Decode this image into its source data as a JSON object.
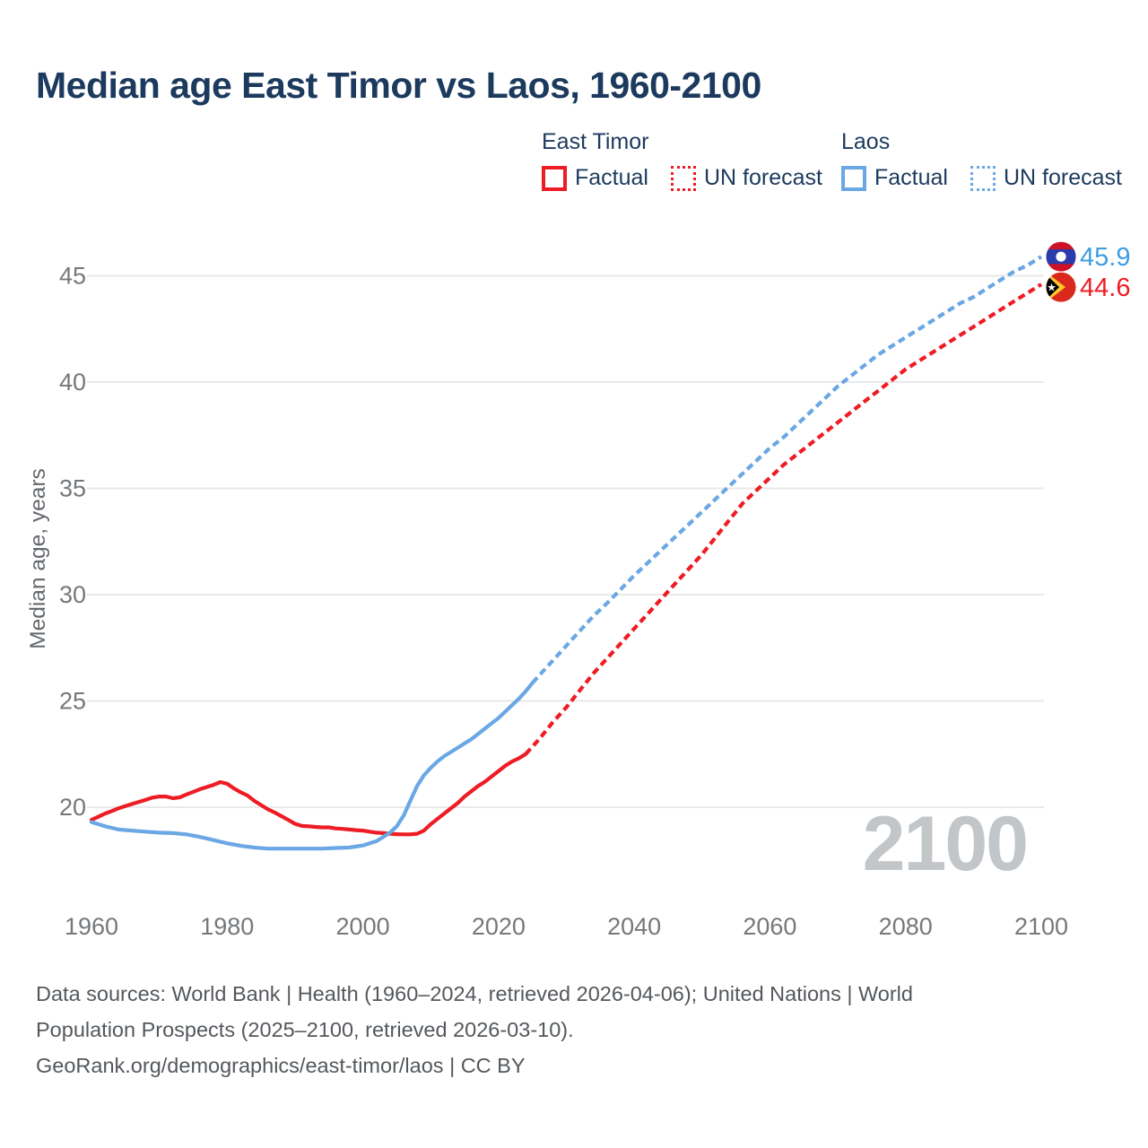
{
  "title": "Median age East Timor vs Laos, 1960-2100",
  "watermark": "2100",
  "colors": {
    "east_timor": "#ee1c24",
    "laos": "#6aa7e4",
    "laos_value_text": "#3f9ce2",
    "east_timor_value_text": "#ee1c24",
    "heading_navy": "#1c3a5e",
    "grid": "#e8e9ea",
    "tick_text": "#75787b",
    "axis_title_text": "#64686c",
    "footer_text": "#54585c",
    "watermark_text": "#c3c6c9"
  },
  "legend": {
    "groups": [
      {
        "name": "East Timor",
        "items": [
          {
            "label": "Factual",
            "style": "solid"
          },
          {
            "label": "UN forecast",
            "style": "dotted"
          }
        ]
      },
      {
        "name": "Laos",
        "items": [
          {
            "label": "Factual",
            "style": "solid"
          },
          {
            "label": "UN forecast",
            "style": "dotted"
          }
        ]
      }
    ]
  },
  "footer": {
    "line1": "Data sources: World Bank | Health (1960–2024, retrieved 2026-04-06); United Nations | World",
    "line2": "Population Prospects (2025–2100, retrieved 2026-03-10).",
    "line3": "GeoRank.org/demographics/east-timor/laos | CC BY"
  },
  "chart_data": {
    "type": "line",
    "title": "Median age East Timor vs Laos, 1960-2100",
    "xlabel": "",
    "ylabel": "Median age, years",
    "ylim": [
      17,
      47.5
    ],
    "xlim": [
      1955,
      2112
    ],
    "grid": "horizontal-only",
    "legend_position": "top",
    "yticks": [
      20,
      25,
      30,
      35,
      40,
      45
    ],
    "xticks": [
      1960,
      1980,
      2000,
      2020,
      2040,
      2060,
      2080,
      2100
    ],
    "series": [
      {
        "name": "East Timor — Factual",
        "color": "#ee1c24",
        "style": "solid",
        "points": [
          [
            1960,
            19.4
          ],
          [
            1961,
            19.55
          ],
          [
            1962,
            19.7
          ],
          [
            1963,
            19.82
          ],
          [
            1964,
            19.95
          ],
          [
            1965,
            20.05
          ],
          [
            1966,
            20.15
          ],
          [
            1967,
            20.25
          ],
          [
            1968,
            20.35
          ],
          [
            1969,
            20.45
          ],
          [
            1970,
            20.5
          ],
          [
            1971,
            20.5
          ],
          [
            1972,
            20.42
          ],
          [
            1973,
            20.46
          ],
          [
            1974,
            20.6
          ],
          [
            1975,
            20.72
          ],
          [
            1976,
            20.85
          ],
          [
            1977,
            20.95
          ],
          [
            1978,
            21.05
          ],
          [
            1979,
            21.18
          ],
          [
            1980,
            21.1
          ],
          [
            1981,
            20.88
          ],
          [
            1982,
            20.7
          ],
          [
            1983,
            20.55
          ],
          [
            1984,
            20.3
          ],
          [
            1985,
            20.1
          ],
          [
            1986,
            19.9
          ],
          [
            1987,
            19.75
          ],
          [
            1988,
            19.58
          ],
          [
            1989,
            19.4
          ],
          [
            1990,
            19.22
          ],
          [
            1991,
            19.12
          ],
          [
            1992,
            19.1
          ],
          [
            1993,
            19.07
          ],
          [
            1994,
            19.05
          ],
          [
            1995,
            19.05
          ],
          [
            1996,
            19.0
          ],
          [
            1997,
            18.98
          ],
          [
            1998,
            18.95
          ],
          [
            1999,
            18.92
          ],
          [
            2000,
            18.9
          ],
          [
            2001,
            18.85
          ],
          [
            2002,
            18.8
          ],
          [
            2003,
            18.78
          ],
          [
            2004,
            18.75
          ],
          [
            2005,
            18.73
          ],
          [
            2006,
            18.72
          ],
          [
            2007,
            18.72
          ],
          [
            2008,
            18.75
          ],
          [
            2009,
            18.9
          ],
          [
            2010,
            19.2
          ],
          [
            2011,
            19.45
          ],
          [
            2012,
            19.7
          ],
          [
            2013,
            19.95
          ],
          [
            2014,
            20.2
          ],
          [
            2015,
            20.5
          ],
          [
            2016,
            20.75
          ],
          [
            2017,
            21.0
          ],
          [
            2018,
            21.2
          ],
          [
            2019,
            21.45
          ],
          [
            2020,
            21.7
          ],
          [
            2021,
            21.95
          ],
          [
            2022,
            22.15
          ],
          [
            2023,
            22.3
          ],
          [
            2024,
            22.5
          ]
        ]
      },
      {
        "name": "East Timor — UN forecast",
        "color": "#ee1c24",
        "style": "dashed",
        "points": [
          [
            2024,
            22.5
          ],
          [
            2026,
            23.2
          ],
          [
            2028,
            24.0
          ],
          [
            2030,
            24.7
          ],
          [
            2032,
            25.5
          ],
          [
            2034,
            26.3
          ],
          [
            2036,
            27.0
          ],
          [
            2038,
            27.7
          ],
          [
            2040,
            28.4
          ],
          [
            2042,
            29.1
          ],
          [
            2044,
            29.8
          ],
          [
            2046,
            30.5
          ],
          [
            2048,
            31.2
          ],
          [
            2050,
            31.9
          ],
          [
            2052,
            32.7
          ],
          [
            2054,
            33.5
          ],
          [
            2056,
            34.3
          ],
          [
            2058,
            34.9
          ],
          [
            2060,
            35.5
          ],
          [
            2062,
            36.1
          ],
          [
            2064,
            36.6
          ],
          [
            2066,
            37.1
          ],
          [
            2068,
            37.6
          ],
          [
            2070,
            38.1
          ],
          [
            2072,
            38.6
          ],
          [
            2074,
            39.1
          ],
          [
            2076,
            39.6
          ],
          [
            2078,
            40.1
          ],
          [
            2080,
            40.6
          ],
          [
            2082,
            41.0
          ],
          [
            2084,
            41.4
          ],
          [
            2086,
            41.8
          ],
          [
            2088,
            42.2
          ],
          [
            2090,
            42.6
          ],
          [
            2092,
            43.0
          ],
          [
            2094,
            43.4
          ],
          [
            2096,
            43.8
          ],
          [
            2098,
            44.2
          ],
          [
            2100,
            44.6
          ]
        ]
      },
      {
        "name": "Laos — Factual",
        "color": "#6aa7e4",
        "style": "solid",
        "points": [
          [
            1960,
            19.3
          ],
          [
            1962,
            19.1
          ],
          [
            1964,
            18.95
          ],
          [
            1966,
            18.9
          ],
          [
            1968,
            18.85
          ],
          [
            1970,
            18.8
          ],
          [
            1972,
            18.78
          ],
          [
            1974,
            18.72
          ],
          [
            1976,
            18.6
          ],
          [
            1978,
            18.45
          ],
          [
            1980,
            18.3
          ],
          [
            1982,
            18.18
          ],
          [
            1984,
            18.1
          ],
          [
            1986,
            18.05
          ],
          [
            1988,
            18.05
          ],
          [
            1990,
            18.05
          ],
          [
            1992,
            18.05
          ],
          [
            1994,
            18.05
          ],
          [
            1996,
            18.08
          ],
          [
            1998,
            18.1
          ],
          [
            2000,
            18.2
          ],
          [
            2001,
            18.3
          ],
          [
            2002,
            18.4
          ],
          [
            2003,
            18.6
          ],
          [
            2004,
            18.8
          ],
          [
            2005,
            19.1
          ],
          [
            2006,
            19.6
          ],
          [
            2007,
            20.3
          ],
          [
            2008,
            21.0
          ],
          [
            2009,
            21.5
          ],
          [
            2010,
            21.85
          ],
          [
            2011,
            22.15
          ],
          [
            2012,
            22.4
          ],
          [
            2013,
            22.6
          ],
          [
            2014,
            22.8
          ],
          [
            2015,
            23.0
          ],
          [
            2016,
            23.2
          ],
          [
            2017,
            23.45
          ],
          [
            2018,
            23.7
          ],
          [
            2019,
            23.95
          ],
          [
            2020,
            24.2
          ],
          [
            2021,
            24.5
          ],
          [
            2022,
            24.8
          ],
          [
            2023,
            25.1
          ],
          [
            2024,
            25.45
          ],
          [
            2025,
            25.85
          ]
        ]
      },
      {
        "name": "Laos — UN forecast",
        "color": "#6aa7e4",
        "style": "dashed",
        "points": [
          [
            2025,
            25.85
          ],
          [
            2026,
            26.2
          ],
          [
            2028,
            26.9
          ],
          [
            2030,
            27.6
          ],
          [
            2032,
            28.3
          ],
          [
            2034,
            29.0
          ],
          [
            2036,
            29.6
          ],
          [
            2038,
            30.25
          ],
          [
            2040,
            30.9
          ],
          [
            2042,
            31.5
          ],
          [
            2044,
            32.1
          ],
          [
            2046,
            32.7
          ],
          [
            2048,
            33.3
          ],
          [
            2050,
            33.9
          ],
          [
            2052,
            34.5
          ],
          [
            2054,
            35.1
          ],
          [
            2056,
            35.7
          ],
          [
            2058,
            36.3
          ],
          [
            2060,
            36.9
          ],
          [
            2062,
            37.4
          ],
          [
            2064,
            38.0
          ],
          [
            2066,
            38.6
          ],
          [
            2068,
            39.2
          ],
          [
            2070,
            39.8
          ],
          [
            2072,
            40.3
          ],
          [
            2074,
            40.8
          ],
          [
            2076,
            41.3
          ],
          [
            2078,
            41.7
          ],
          [
            2080,
            42.1
          ],
          [
            2082,
            42.5
          ],
          [
            2084,
            42.9
          ],
          [
            2086,
            43.3
          ],
          [
            2088,
            43.7
          ],
          [
            2090,
            44.0
          ],
          [
            2092,
            44.4
          ],
          [
            2094,
            44.8
          ],
          [
            2096,
            45.2
          ],
          [
            2098,
            45.5
          ],
          [
            2100,
            45.9
          ]
        ]
      }
    ],
    "end_labels": [
      {
        "series": "Laos",
        "value": 45.9,
        "text": "45.9",
        "flag": "laos",
        "text_color": "#3f9ce2"
      },
      {
        "series": "East Timor",
        "value": 44.6,
        "text": "44.6",
        "flag": "east-timor",
        "text_color": "#ee1c24"
      }
    ]
  }
}
